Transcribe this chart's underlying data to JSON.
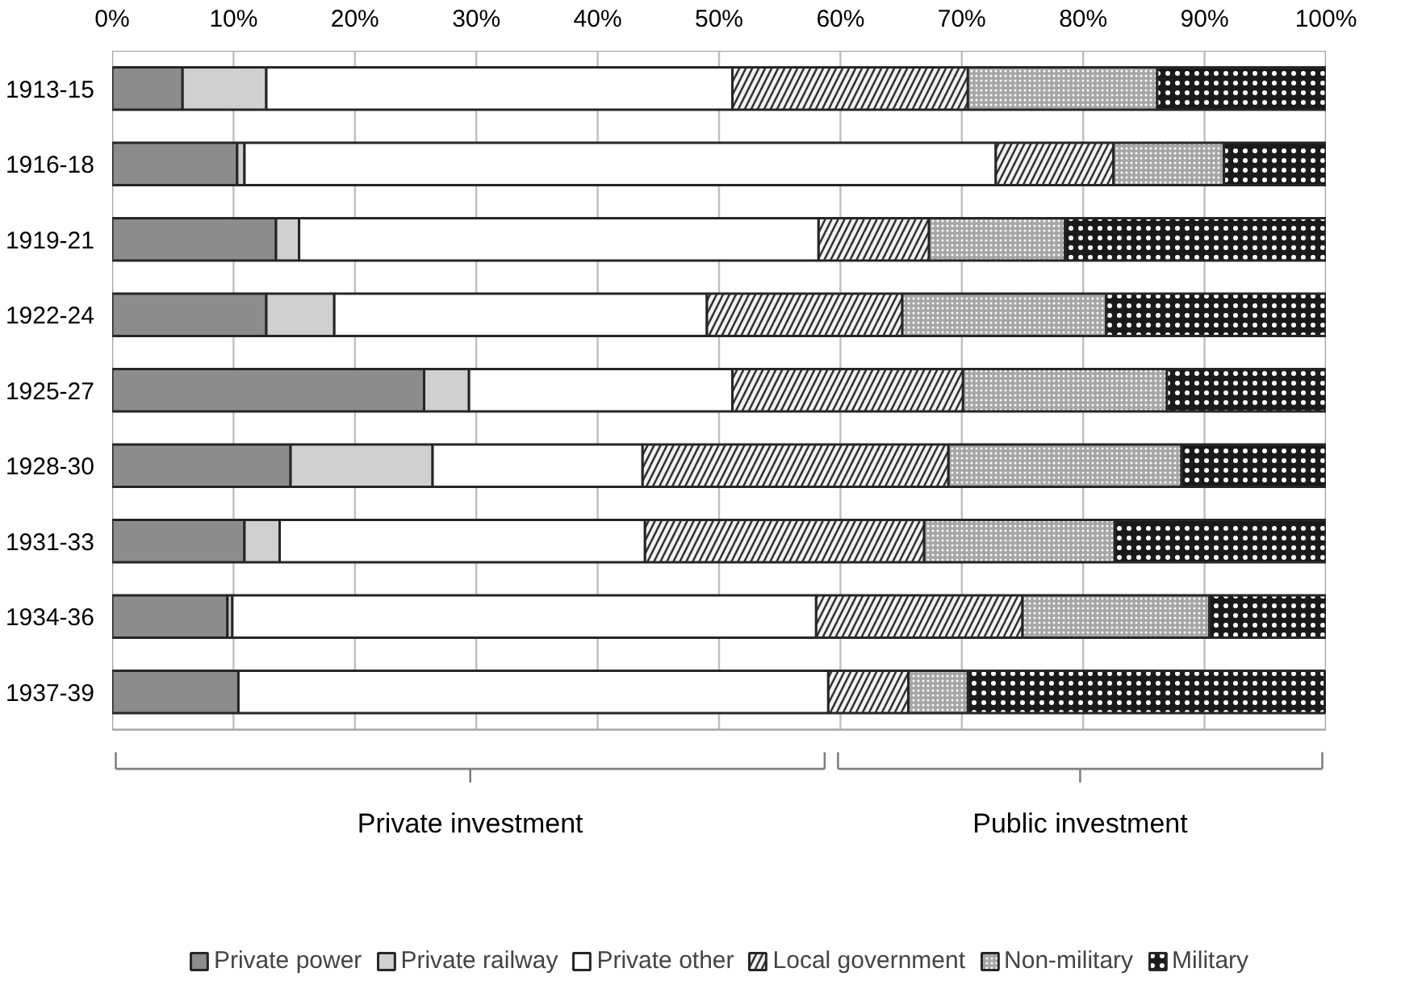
{
  "chart_data": {
    "type": "bar",
    "orientation": "horizontal",
    "stacked": true,
    "categories": [
      "1913-15",
      "1916-18",
      "1919-21",
      "1922-24",
      "1925-27",
      "1928-30",
      "1931-33",
      "1934-36",
      "1937-39"
    ],
    "series": [
      {
        "name": "Private power",
        "color": "#8c8c8c",
        "values": [
          5.8,
          10.3,
          13.5,
          12.7,
          25.7,
          14.7,
          10.9,
          9.5,
          10.4
        ]
      },
      {
        "name": "Private railway",
        "color": "#d0d0d0",
        "values": [
          6.9,
          0.6,
          1.9,
          5.6,
          3.7,
          11.7,
          2.9,
          0.4,
          null
        ]
      },
      {
        "name": "Private other",
        "color": "#ffffff",
        "values": [
          38.4,
          61.9,
          42.8,
          30.7,
          21.7,
          17.3,
          30.1,
          48.1,
          48.6
        ]
      },
      {
        "name": "Local government",
        "color": "#f2f2f2",
        "values": [
          19.4,
          9.7,
          9.1,
          16.1,
          19.0,
          25.2,
          23.0,
          17.0,
          6.6
        ]
      },
      {
        "name": "Non-military",
        "color": "#a6a6a6",
        "values": [
          15.6,
          9.1,
          11.2,
          16.8,
          16.8,
          19.2,
          15.7,
          15.4,
          4.9
        ]
      },
      {
        "name": "Military",
        "color": "#1a1a1a",
        "values": [
          13.9,
          8.4,
          21.5,
          18.1,
          13.1,
          11.9,
          17.4,
          9.6,
          29.4
        ]
      }
    ],
    "xlim": [
      0,
      100
    ],
    "xticks": [
      {
        "value": 0,
        "label": "0%"
      },
      {
        "value": 10,
        "label": "10%"
      },
      {
        "value": 20,
        "label": "20%"
      },
      {
        "value": 30,
        "label": "30%"
      },
      {
        "value": 40,
        "label": "40%"
      },
      {
        "value": 50,
        "label": "50%"
      },
      {
        "value": 60,
        "label": "60%"
      },
      {
        "value": 70,
        "label": "70%"
      },
      {
        "value": 80,
        "label": "80%"
      },
      {
        "value": 90,
        "label": "90%"
      },
      {
        "value": 100,
        "label": "100%"
      }
    ],
    "annotations": [
      "Private investment",
      "Public investment"
    ],
    "grid": "x",
    "legend": "bottom"
  }
}
